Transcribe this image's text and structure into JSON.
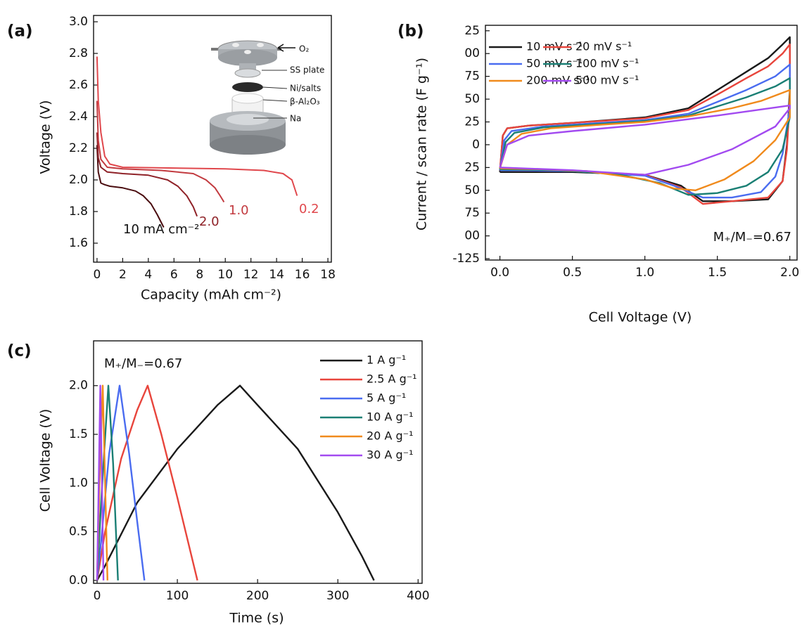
{
  "chart_data": [
    {
      "type": "line",
      "panel_label": "(a)",
      "xlabel": "Capacity (mAh cm⁻²)",
      "ylabel": "Voltage (V)",
      "xlim": [
        -0.27,
        18.27
      ],
      "ylim": [
        1.48,
        3.04
      ],
      "xticks": [
        0,
        2,
        4,
        6,
        8,
        10,
        12,
        14,
        16,
        18
      ],
      "yticks": [
        1.6,
        1.8,
        {
          "value": 2,
          "label": "2.0"
        },
        2.2,
        2.4,
        2.6,
        2.8,
        {
          "value": 3,
          "label": "3.0"
        }
      ],
      "inset_labels": [
        "O₂",
        "SS plate",
        "Ni/salts",
        "β-Al₂O₃",
        "Na"
      ],
      "series": [
        {
          "name": "10 mA cm⁻²",
          "color": "#4a0d10",
          "x": [
            0,
            0.1,
            0.3,
            0.6,
            1.0,
            2.0,
            3.0,
            3.6,
            4.2,
            4.7,
            5.2
          ],
          "values": [
            2.22,
            2.05,
            1.98,
            1.97,
            1.96,
            1.95,
            1.93,
            1.9,
            1.85,
            1.78,
            1.7
          ]
        },
        {
          "name": "2.0",
          "color": "#8f2228",
          "x": [
            0,
            0.1,
            0.3,
            0.8,
            2,
            4,
            5.5,
            6.3,
            7.0,
            7.5,
            7.8
          ],
          "values": [
            2.3,
            2.14,
            2.08,
            2.05,
            2.04,
            2.03,
            2.0,
            1.96,
            1.9,
            1.83,
            1.77
          ]
        },
        {
          "name": "1.0",
          "color": "#c23a3f",
          "x": [
            0,
            0.1,
            0.3,
            0.8,
            2,
            5,
            7.5,
            8.5,
            9.2,
            9.6,
            9.9
          ],
          "values": [
            2.5,
            2.25,
            2.13,
            2.08,
            2.07,
            2.06,
            2.04,
            2.0,
            1.95,
            1.9,
            1.86
          ]
        },
        {
          "name": "0.2",
          "color": "#e0474c",
          "x": [
            0,
            0.1,
            0.3,
            0.6,
            1.0,
            2,
            6,
            10,
            13,
            14.5,
            15.2,
            15.6
          ],
          "values": [
            2.78,
            2.5,
            2.3,
            2.15,
            2.1,
            2.08,
            2.075,
            2.07,
            2.06,
            2.04,
            2.0,
            1.9
          ]
        }
      ]
    },
    {
      "type": "line",
      "panel_label": "(b)",
      "xlabel": "Cell Voltage (V)",
      "ylabel": "Current / scan rate (F g⁻¹)",
      "xlim": [
        -0.1,
        2.05
      ],
      "ylim": [
        -126.5,
        131
      ],
      "xticks": [
        {
          "value": 0,
          "label": "0.0"
        },
        0.5,
        {
          "value": 1,
          "label": "1.0"
        },
        1.5,
        {
          "value": 2,
          "label": "2.0"
        }
      ],
      "yticks": [
        {
          "value": 125,
          "label": "25"
        },
        {
          "value": 100,
          "label": "00"
        },
        75,
        50,
        25,
        0,
        {
          "value": -25,
          "label": "25"
        },
        {
          "value": -50,
          "label": "50"
        },
        {
          "value": -75,
          "label": "75"
        },
        {
          "value": -100,
          "label": "00"
        },
        -125
      ],
      "annotation": "M₊/M₋=0.67",
      "legend": "upper left",
      "series": [
        {
          "name": "10 mV s⁻¹",
          "color": "#1a1a1a",
          "x": [
            0,
            0.02,
            0.05,
            0.2,
            0.5,
            1.0,
            1.3,
            1.5,
            1.7,
            1.85,
            1.95,
            2.0,
            2.0,
            1.98,
            1.95,
            1.85,
            1.6,
            1.4,
            1.25,
            1.0,
            0.5,
            0
          ],
          "values": [
            -30,
            10,
            18,
            21,
            24,
            30,
            40,
            60,
            80,
            95,
            110,
            118,
            60,
            0,
            -40,
            -60,
            -62,
            -62,
            -45,
            -33,
            -30,
            -30
          ]
        },
        {
          "name": "20 mV s⁻¹",
          "color": "#e8453c",
          "x": [
            0,
            0.02,
            0.05,
            0.2,
            0.5,
            1.0,
            1.3,
            1.5,
            1.7,
            1.85,
            1.95,
            2.0,
            2.0,
            1.98,
            1.95,
            1.85,
            1.6,
            1.4,
            1.25,
            1.0,
            0.5,
            0
          ],
          "values": [
            -28,
            10,
            18,
            21,
            24,
            29,
            38,
            55,
            73,
            86,
            100,
            110,
            50,
            -5,
            -40,
            -58,
            -62,
            -65,
            -47,
            -33,
            -29,
            -28
          ]
        },
        {
          "name": "50 mV s⁻¹",
          "color": "#4a6cf0",
          "x": [
            0,
            0.03,
            0.08,
            0.3,
            0.6,
            1.0,
            1.3,
            1.5,
            1.7,
            1.9,
            2.0,
            2.0,
            1.95,
            1.9,
            1.8,
            1.6,
            1.4,
            1.2,
            1.0,
            0.5,
            0
          ],
          "values": [
            -28,
            5,
            15,
            20,
            23,
            27,
            34,
            47,
            60,
            75,
            88,
            40,
            -10,
            -35,
            -52,
            -58,
            -58,
            -45,
            -34,
            -29,
            -28
          ]
        },
        {
          "name": "100 mV s⁻¹",
          "color": "#1a7f74",
          "x": [
            0,
            0.04,
            0.1,
            0.3,
            0.6,
            1.0,
            1.3,
            1.5,
            1.7,
            1.9,
            2.0,
            2.0,
            1.95,
            1.85,
            1.7,
            1.5,
            1.3,
            1.1,
            0.8,
            0.4,
            0
          ],
          "values": [
            -27,
            3,
            13,
            19,
            22,
            26,
            32,
            42,
            52,
            64,
            73,
            30,
            -5,
            -30,
            -45,
            -53,
            -55,
            -42,
            -32,
            -28,
            -27
          ]
        },
        {
          "name": "200 mV s⁻¹",
          "color": "#f08a1c",
          "x": [
            0,
            0.05,
            0.15,
            0.35,
            0.7,
            1.0,
            1.3,
            1.6,
            1.8,
            2.0,
            2.0,
            1.9,
            1.75,
            1.55,
            1.35,
            1.2,
            1.0,
            0.6,
            0.3,
            0
          ],
          "values": [
            -26,
            0,
            12,
            18,
            22,
            25,
            31,
            40,
            48,
            60,
            30,
            5,
            -18,
            -38,
            -50,
            -48,
            -38,
            -29,
            -27,
            -26
          ]
        },
        {
          "name": "500 mV s⁻¹",
          "color": "#a24af0",
          "x": [
            0,
            0.05,
            0.2,
            0.5,
            1.0,
            1.5,
            2.0,
            2.0,
            1.9,
            1.6,
            1.3,
            1.0,
            0.5,
            0
          ],
          "values": [
            -25,
            0,
            10,
            15,
            22,
            32,
            43,
            40,
            20,
            -5,
            -22,
            -33,
            -28,
            -25
          ]
        }
      ]
    },
    {
      "type": "line",
      "panel_label": "(c)",
      "xlabel": "Time (s)",
      "ylabel": "Cell Voltage (V)",
      "xlim": [
        -4.4,
        405
      ],
      "ylim": [
        -0.03,
        2.46
      ],
      "xticks": [
        0,
        100,
        200,
        300,
        400
      ],
      "yticks": [
        {
          "value": 0,
          "label": "0.0"
        },
        0.5,
        {
          "value": 1,
          "label": "1.0"
        },
        1.5,
        {
          "value": 2,
          "label": "2.0"
        }
      ],
      "annotation": "M₊/M₋=0.67",
      "legend": "upper right",
      "series": [
        {
          "name": "1 A g⁻¹",
          "color": "#1a1a1a",
          "x": [
            0,
            10,
            50,
            100,
            150,
            178,
            200,
            250,
            300,
            330,
            345
          ],
          "values": [
            0,
            0.15,
            0.8,
            1.35,
            1.8,
            2.0,
            1.8,
            1.35,
            0.7,
            0.25,
            0
          ]
        },
        {
          "name": "2.5 A g⁻¹",
          "color": "#e8453c",
          "x": [
            0,
            10,
            30,
            50,
            63,
            80,
            100,
            125
          ],
          "values": [
            0,
            0.5,
            1.25,
            1.75,
            2.0,
            1.5,
            0.85,
            0
          ]
        },
        {
          "name": "5 A g⁻¹",
          "color": "#4a6cf0",
          "x": [
            0,
            5,
            15,
            28,
            40,
            50,
            59
          ],
          "values": [
            0,
            0.4,
            1.3,
            2.0,
            1.3,
            0.6,
            0
          ]
        },
        {
          "name": "10 A g⁻¹",
          "color": "#1a7f74",
          "x": [
            0,
            5,
            14,
            20,
            26
          ],
          "values": [
            0,
            0.8,
            2.0,
            1.2,
            0
          ]
        },
        {
          "name": "20 A g⁻¹",
          "color": "#f08a1c",
          "x": [
            0,
            3,
            7,
            10,
            13
          ],
          "values": [
            0,
            1.0,
            2.0,
            1.0,
            0
          ]
        },
        {
          "name": "30 A g⁻¹",
          "color": "#a24af0",
          "x": [
            0,
            2,
            4,
            6,
            8
          ],
          "values": [
            0,
            1.0,
            2.0,
            1.0,
            0
          ]
        }
      ]
    }
  ]
}
